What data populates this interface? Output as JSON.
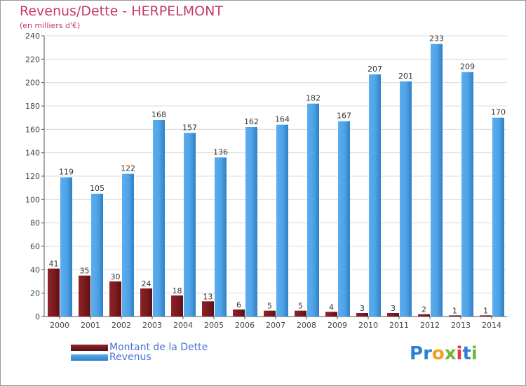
{
  "title": "Revenus/Dette - HERPELMONT",
  "subtitle": "(en milliers d'€)",
  "chart_data": {
    "type": "bar",
    "categories": [
      "2000",
      "2001",
      "2002",
      "2003",
      "2004",
      "2005",
      "2006",
      "2007",
      "2008",
      "2009",
      "2010",
      "2011",
      "2012",
      "2013",
      "2014"
    ],
    "series": [
      {
        "name": "Montant de la Dette",
        "values": [
          41,
          35,
          30,
          24,
          18,
          13,
          6,
          5,
          5,
          4,
          3,
          3,
          2,
          1,
          1
        ],
        "color": "#7a1a1e"
      },
      {
        "name": "Revenus",
        "values": [
          119,
          105,
          122,
          168,
          157,
          136,
          162,
          164,
          182,
          167,
          207,
          201,
          233,
          209,
          170
        ],
        "color": "#3d93dc"
      }
    ],
    "ylim": [
      0,
      240
    ],
    "yticks": [
      0,
      20,
      40,
      60,
      80,
      100,
      120,
      140,
      160,
      180,
      200,
      220,
      240
    ],
    "grid": true,
    "legend": "bottom-left"
  },
  "legend": {
    "items": [
      {
        "label": "Montant de la Dette",
        "color": "#7a1a1e"
      },
      {
        "label": "Revenus",
        "color": "#3d93dc"
      }
    ]
  },
  "logo": {
    "letters": [
      {
        "ch": "P",
        "color": "#2f7fd1"
      },
      {
        "ch": "r",
        "color": "#2f7fd1"
      },
      {
        "ch": "o",
        "color": "#f0a020"
      },
      {
        "ch": "x",
        "color": "#6fb83a"
      },
      {
        "ch": "i",
        "color": "#e23a3a"
      },
      {
        "ch": "t",
        "color": "#2f7fd1"
      },
      {
        "ch": "i",
        "color": "#6fb83a"
      }
    ]
  }
}
